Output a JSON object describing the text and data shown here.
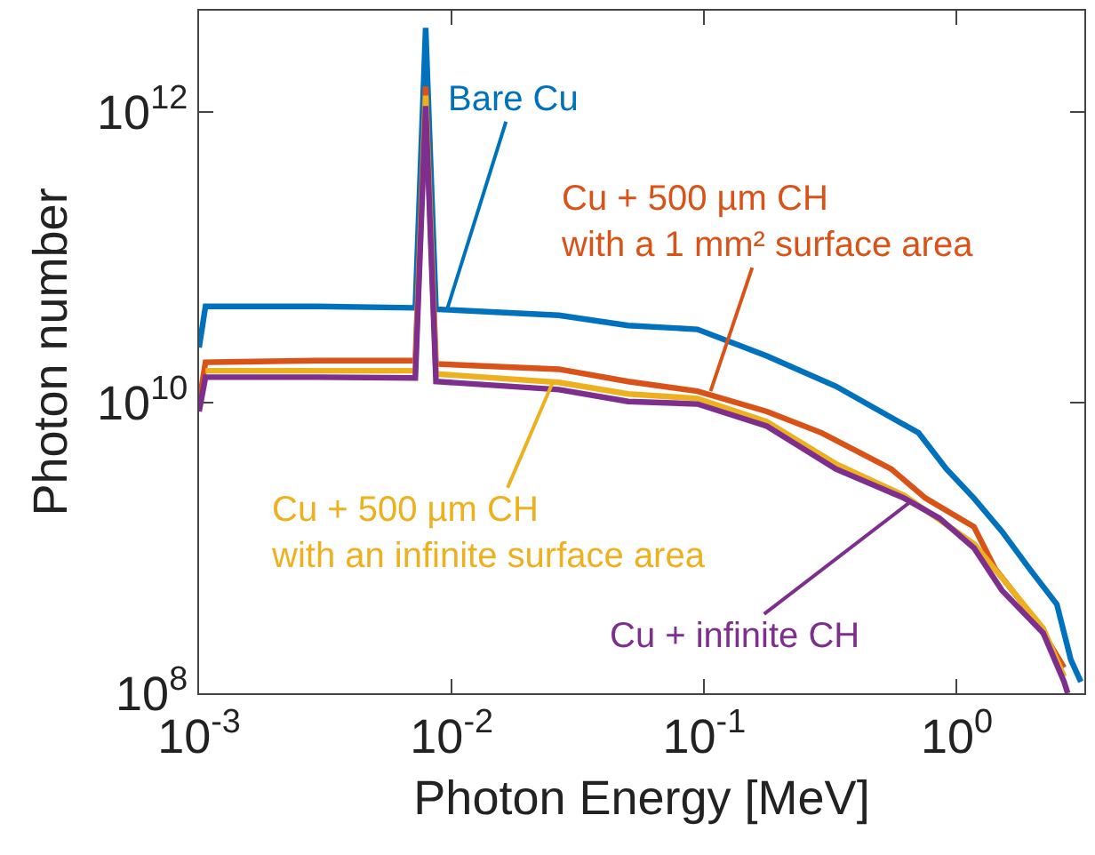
{
  "chart_data": {
    "type": "line",
    "xlabel": "Photon Energy [MeV]",
    "ylabel": "Photon number",
    "log": "xy",
    "marker": "none",
    "line_style": "solid",
    "xlim": [
      0.001,
      3.2
    ],
    "ylim": [
      100000000,
      5000000000000
    ],
    "xticks": [
      {
        "value": 0.001,
        "label": "10$^{-3}$"
      },
      {
        "value": 0.01,
        "label": "10$^{-2}$"
      },
      {
        "value": 0.1,
        "label": "10$^{-1}$"
      },
      {
        "value": 1,
        "label": "10$^{0}$"
      }
    ],
    "yticks": [
      {
        "value": 100000000,
        "label": "10$^{8}$"
      },
      {
        "value": 10000000000,
        "label": "10$^{10}$"
      },
      {
        "value": 1000000000000,
        "label": "10$^{12}$"
      }
    ],
    "series": [
      {
        "color": "#0072bd",
        "x": [
          0.001,
          0.00106,
          0.00292,
          0.00718,
          0.00789,
          0.00867,
          0.0266,
          0.05,
          0.094,
          0.177,
          0.332,
          0.706,
          0.91,
          1.17,
          1.51,
          1.94,
          2.49,
          2.83,
          3.1
        ],
        "values": [
          24000000000.0,
          46000000000.0,
          46000000000.0,
          45000000000.0,
          3800000000000.0,
          44000000000.0,
          40000000000.0,
          34000000000.0,
          32000000000.0,
          21000000000.0,
          13000000000.0,
          6200000000.0,
          3500000000.0,
          2200000000.0,
          1300000000.0,
          720000000.0,
          410000000.0,
          170000000.0,
          120000000.0
        ]
      },
      {
        "color": "#d95319",
        "x": [
          0.001,
          0.00106,
          0.00292,
          0.00718,
          0.00789,
          0.00867,
          0.0266,
          0.05,
          0.094,
          0.177,
          0.292,
          0.55,
          0.753,
          1.17,
          1.42,
          1.94,
          2.2,
          2.66
        ],
        "values": [
          10000000000.0,
          19000000000.0,
          19500000000.0,
          19500000000.0,
          1500000000000.0,
          18500000000.0,
          17000000000.0,
          14000000000.0,
          12000000000.0,
          8700000000.0,
          6200000000.0,
          3500000000.0,
          2200000000.0,
          1400000000.0,
          720000000.0,
          360000000.0,
          260000000.0,
          150000000.0
        ]
      },
      {
        "color": "#edb120",
        "x": [
          0.00106,
          0.00292,
          0.00718,
          0.00789,
          0.00867,
          0.0266,
          0.05,
          0.094,
          0.177,
          0.332,
          0.62,
          1.17,
          2.2,
          2.66
        ],
        "values": [
          16600000000.0,
          16600000000.0,
          16600000000.0,
          1300000000000.0,
          15800000000.0,
          13800000000.0,
          11500000000.0,
          10700000000.0,
          7400000000.0,
          3800000000.0,
          2300000000.0,
          1070000000.0,
          280000000.0,
          130000000.0
        ]
      },
      {
        "color": "#7e2f8e",
        "x": [
          0.001,
          0.00106,
          0.00292,
          0.00718,
          0.00789,
          0.00867,
          0.0266,
          0.05,
          0.094,
          0.177,
          0.332,
          0.62,
          0.855,
          1.17,
          1.51,
          2.2,
          2.66,
          2.75
        ],
        "values": [
          8700000000.0,
          15000000000.0,
          15000000000.0,
          14800000000.0,
          1100000000000.0,
          14000000000.0,
          12300000000.0,
          10200000000.0,
          9800000000.0,
          6900000000.0,
          3500000000.0,
          2200000000.0,
          1600000000.0,
          1000000000.0,
          510000000.0,
          260000000.0,
          120000000.0,
          100000000.0
        ]
      }
    ],
    "annotations": [
      {
        "text": "Bare Cu",
        "x": 0.0096,
        "y": 44000000000
      },
      {
        "text": "Cu + 500 µm CH\nwith a 1 mm² surface area",
        "x": 0.106,
        "y": 12000000000
      },
      {
        "text": "Cu + 500 µm CH\nwith an infinite surface area",
        "x": 0.025,
        "y": 13500000000
      },
      {
        "text": "Cu + infinite CH",
        "x": 0.66,
        "y": 2100000000
      }
    ]
  }
}
